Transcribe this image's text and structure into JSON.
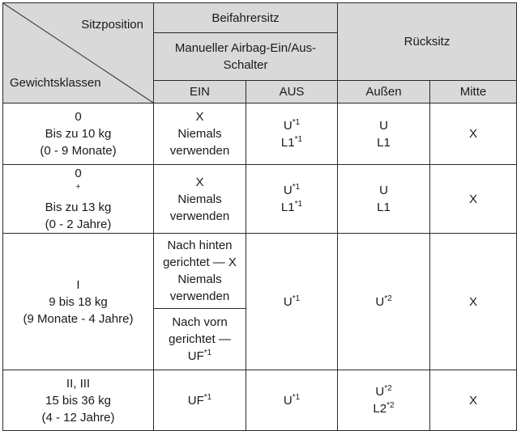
{
  "header": {
    "sitzposition": "Sitzposition",
    "gewichtsklassen": "Gewichtsklassen",
    "beifahrersitz": "Beifahrersitz",
    "schalter_line1": "Manueller Airbag-Ein/Aus-",
    "schalter_line2": "Schalter",
    "ruecksitz": "Rücksitz",
    "ein": "EIN",
    "aus": "AUS",
    "aussen": "Außen",
    "mitte": "Mitte"
  },
  "rows": [
    {
      "class_label": "0",
      "class_sup": "",
      "weight": "Bis zu 10 kg",
      "age": "(0 - 9 Monate)",
      "ein": [
        "X",
        "Niemals",
        "verwenden"
      ],
      "aus": [
        "U*1",
        "L1*1"
      ],
      "aussen": [
        "U",
        "L1"
      ],
      "mitte": "X"
    },
    {
      "class_label": "0",
      "class_sup": "+",
      "weight": "Bis zu 13 kg",
      "age": "(0 - 2 Jahre)",
      "ein": [
        "X",
        "Niemals",
        "verwenden"
      ],
      "aus": [
        "U*1",
        "L1*1"
      ],
      "aussen": [
        "U",
        "L1"
      ],
      "mitte": "X"
    },
    {
      "class_label": "I",
      "class_sup": "",
      "weight": "9 bis 18 kg",
      "age": "(9 Monate - 4 Jahre)",
      "ein_rear": [
        "Nach hinten",
        "gerichtet — X",
        "Niemals",
        "verwenden"
      ],
      "ein_front": [
        "Nach vorn",
        "gerichtet —",
        "UF*1"
      ],
      "aus": "U*1",
      "aussen": "U*2",
      "mitte": "X"
    },
    {
      "class_label": "II, III",
      "class_sup": "",
      "weight": "15 bis 36 kg",
      "age": "(4 - 12 Jahre)",
      "ein": "UF*1",
      "aus": "U*1",
      "aussen": [
        "U*2",
        "L2*2"
      ],
      "mitte": "X"
    }
  ],
  "colors": {
    "header_bg": "#d9d9d9",
    "border": "#2a2a2a"
  }
}
